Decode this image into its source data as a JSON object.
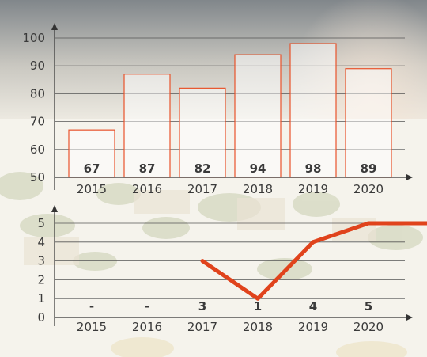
{
  "chart_data": [
    {
      "type": "bar",
      "categories": [
        "2015",
        "2016",
        "2017",
        "2018",
        "2019",
        "2020"
      ],
      "values": [
        67,
        87,
        82,
        94,
        98,
        89
      ],
      "data_labels": [
        "67",
        "87",
        "82",
        "94",
        "98",
        "89"
      ],
      "ylim": [
        50,
        100
      ],
      "yticks": [
        50,
        60,
        70,
        80,
        90,
        100
      ],
      "grid": true,
      "colors": {
        "bar_stroke": "#e8532b",
        "bar_fill": "#ffffff",
        "grid": "#555555",
        "text": "#3a3a3a"
      }
    },
    {
      "type": "line",
      "categories": [
        "2015",
        "2016",
        "2017",
        "2018",
        "2019",
        "2020"
      ],
      "values": [
        null,
        null,
        3,
        1,
        4,
        5
      ],
      "data_labels": [
        "-",
        "-",
        "3",
        "1",
        "4",
        "5"
      ],
      "ylim": [
        0,
        5
      ],
      "yticks": [
        0,
        1,
        2,
        3,
        4,
        5
      ],
      "grid": true,
      "colors": {
        "line": "#e0431c",
        "grid": "#555555",
        "text": "#3a3a3a"
      }
    }
  ]
}
